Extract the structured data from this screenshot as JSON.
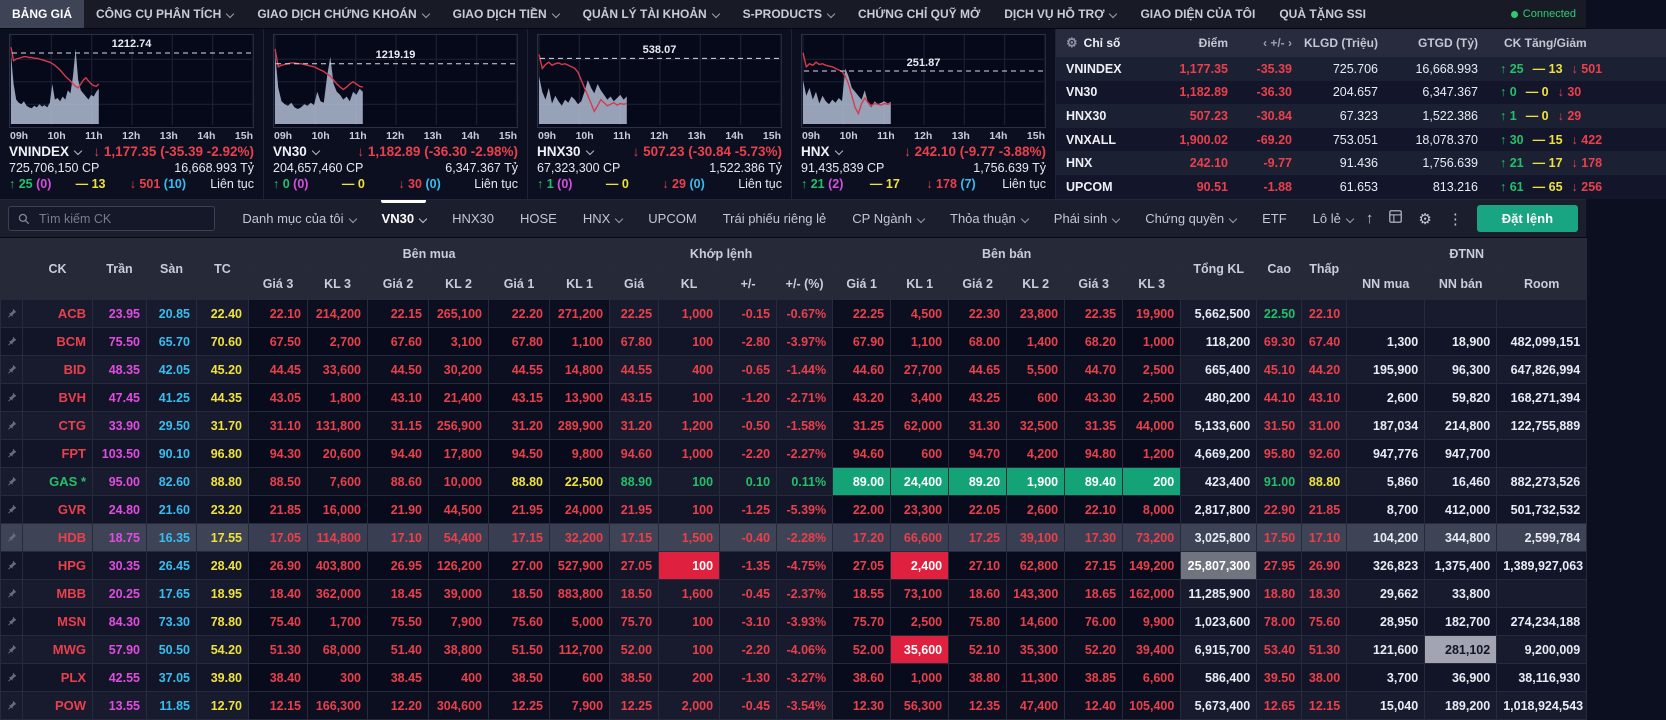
{
  "nav": {
    "items": [
      {
        "label": "BẢNG GIÁ",
        "active": true,
        "caret": false
      },
      {
        "label": "CÔNG CỤ PHÂN TÍCH",
        "caret": true
      },
      {
        "label": "GIAO DỊCH CHỨNG KHOÁN",
        "caret": true
      },
      {
        "label": "GIAO DỊCH TIỀN",
        "caret": true
      },
      {
        "label": "QUẢN LÝ TÀI KHOẢN",
        "caret": true
      },
      {
        "label": "S-PRODUCTS",
        "caret": true
      },
      {
        "label": "CHỨNG CHỈ QUỸ MỞ",
        "caret": false
      },
      {
        "label": "DỊCH VỤ HỖ TRỢ",
        "caret": true
      },
      {
        "label": "GIAO DIỆN CỦA TÔI",
        "caret": false
      },
      {
        "label": "QUÀ TẶNG SSI",
        "caret": false
      }
    ],
    "connection": "Connected"
  },
  "colors": {
    "up": "#23c06a",
    "down": "#e9404b",
    "reference": "#efe23e",
    "ceiling": "#df4ddf",
    "floor": "#38bdef",
    "accent": "#19a581"
  },
  "charts_meta": {
    "x_labels": [
      "09h",
      "10h",
      "11h",
      "12h",
      "13h",
      "14h",
      "15h"
    ]
  },
  "charts": [
    {
      "name": "VNINDEX",
      "ref": "1212.74",
      "ref_y": 0.2,
      "change": "1,177.35 (-35.39 -2.92%)",
      "volume": "725,706,150 CP",
      "value": "16,668.993 Tỷ",
      "up": "25",
      "up_ceil": "(0)",
      "flat": "13",
      "down": "501",
      "down_floor": "(10)",
      "session": "Liên tục",
      "area": [
        88,
        50,
        30,
        26,
        24,
        28,
        22,
        20,
        19,
        22,
        20,
        24,
        21,
        23,
        20,
        26,
        50,
        30,
        32,
        28,
        34,
        30,
        42,
        38,
        60,
        95,
        55,
        42,
        38,
        34,
        30,
        36,
        34,
        40,
        44
      ],
      "line": [
        97,
        80,
        82,
        83,
        84,
        85,
        85,
        84,
        84,
        83,
        83,
        82,
        81,
        80,
        79,
        78,
        76,
        74,
        71,
        68,
        64,
        60,
        57,
        54,
        50,
        47,
        45,
        50,
        55,
        58,
        54,
        50,
        48,
        47,
        50
      ]
    },
    {
      "name": "VN30",
      "ref": "1219.19",
      "ref_y": 0.32,
      "change": "1,182.89 (-36.30 -2.98%)",
      "volume": "204,657,460 CP",
      "value": "6,347.367 Tỷ",
      "up": "0",
      "up_ceil": "(0)",
      "flat": "0",
      "down": "30",
      "down_floor": "(0)",
      "session": "Liên tục",
      "area": [
        90,
        45,
        28,
        24,
        22,
        26,
        20,
        18,
        20,
        24,
        22,
        26,
        23,
        40,
        28,
        26,
        60,
        85,
        50,
        40,
        36,
        30,
        34,
        28,
        40,
        36,
        44,
        40
      ],
      "line": [
        95,
        72,
        74,
        75,
        76,
        77,
        77,
        76,
        76,
        75,
        74,
        73,
        72,
        70,
        68,
        66,
        63,
        60,
        55,
        50,
        46,
        43,
        46,
        50,
        53,
        50,
        47,
        46
      ]
    },
    {
      "name": "HNX30",
      "ref": "538.07",
      "ref_y": 0.26,
      "change": "507.23 (-30.84 -5.73%)",
      "volume": "67,323,300 CP",
      "value": "1,522.386 Tỷ",
      "up": "1",
      "up_ceil": "(0)",
      "flat": "0",
      "down": "29",
      "down_floor": "(0)",
      "session": "Liên tục",
      "area": [
        60,
        40,
        30,
        45,
        25,
        35,
        28,
        22,
        30,
        26,
        34,
        30,
        24,
        28,
        40,
        55,
        45,
        38,
        50,
        42,
        36,
        30,
        34,
        28,
        32,
        36,
        30,
        34
      ],
      "line": [
        88,
        70,
        75,
        78,
        74,
        76,
        77,
        75,
        76,
        74,
        72,
        70,
        65,
        55,
        45,
        35,
        25,
        15,
        22,
        30,
        26,
        22,
        24,
        26,
        23,
        25,
        24,
        25
      ]
    },
    {
      "name": "HNX",
      "ref": "251.87",
      "ref_y": 0.4,
      "change": "242.10 (-9.77 -3.88%)",
      "volume": "91,435,839 CP",
      "value": "1,756.639 Tỷ",
      "up": "21",
      "up_ceil": "(2)",
      "flat": "17",
      "down": "178",
      "down_floor": "(7)",
      "session": "Liên tục",
      "area": [
        55,
        35,
        45,
        30,
        40,
        25,
        35,
        28,
        24,
        30,
        26,
        32,
        28,
        70,
        60,
        45,
        40,
        35,
        30,
        42,
        25,
        20,
        28,
        24,
        26,
        28,
        25,
        27
      ],
      "line": [
        90,
        72,
        76,
        74,
        78,
        75,
        76,
        74,
        73,
        72,
        70,
        68,
        66,
        60,
        50,
        35,
        20,
        12,
        25,
        32,
        26,
        22,
        25,
        24,
        23,
        25,
        24,
        25
      ]
    }
  ],
  "index_table": {
    "headers": [
      "Chỉ số",
      "Điểm",
      "‹ +/- ›",
      "KLGD (Triệu)",
      "GTGD (Tỷ)",
      "CK Tăng/Giảm"
    ],
    "rows": [
      {
        "name": "VNINDEX",
        "point": "1,177.35",
        "change": "-35.39",
        "klgd": "725.706",
        "gtgd": "16,668.993",
        "up": "25",
        "flat": "13",
        "down": "501"
      },
      {
        "name": "VN30",
        "point": "1,182.89",
        "change": "-36.30",
        "klgd": "204.657",
        "gtgd": "6,347.367",
        "up": "0",
        "flat": "0",
        "down": "30"
      },
      {
        "name": "HNX30",
        "point": "507.23",
        "change": "-30.84",
        "klgd": "67.323",
        "gtgd": "1,522.386",
        "up": "1",
        "flat": "0",
        "down": "29"
      },
      {
        "name": "VNXALL",
        "point": "1,900.02",
        "change": "-69.20",
        "klgd": "753.051",
        "gtgd": "18,078.370",
        "up": "30",
        "flat": "15",
        "down": "422"
      },
      {
        "name": "HNX",
        "point": "242.10",
        "change": "-9.77",
        "klgd": "91.436",
        "gtgd": "1,756.639",
        "up": "21",
        "flat": "17",
        "down": "178"
      },
      {
        "name": "UPCOM",
        "point": "90.51",
        "change": "-1.88",
        "klgd": "61.653",
        "gtgd": "813.216",
        "up": "61",
        "flat": "65",
        "down": "256"
      }
    ]
  },
  "toolbar": {
    "search_placeholder": "Tìm kiếm CK",
    "tabs": [
      {
        "label": "Danh mục của tôi",
        "caret": true
      },
      {
        "label": "VN30",
        "caret": true,
        "active": true
      },
      {
        "label": "HNX30"
      },
      {
        "label": "HOSE"
      },
      {
        "label": "HNX",
        "caret": true
      },
      {
        "label": "UPCOM"
      },
      {
        "label": "Trái phiếu riêng lẻ"
      },
      {
        "label": "CP Ngành",
        "caret": true
      },
      {
        "label": "Thỏa thuận",
        "caret": true
      },
      {
        "label": "Phái sinh",
        "caret": true
      },
      {
        "label": "Chứng quyền",
        "caret": true
      },
      {
        "label": "ETF"
      },
      {
        "label": "Lô lẻ",
        "caret": true
      }
    ],
    "order_button": "Đặt lệnh"
  },
  "board": {
    "header": {
      "ck": "CK",
      "tran": "Trần",
      "san": "Sàn",
      "tc": "TC",
      "buy": "Bên mua",
      "match": "Khớp lệnh",
      "sell": "Bên bán",
      "total": "Tổng KL",
      "high": "Cao",
      "low": "Thấp",
      "dtnn": "ĐTNN",
      "buy_cols": [
        "Giá 3",
        "KL 3",
        "Giá 2",
        "KL 2",
        "Giá 1",
        "KL 1"
      ],
      "match_cols": [
        "Giá",
        "KL",
        "+/-",
        "+/- (%)"
      ],
      "sell_cols": [
        "Giá 1",
        "KL 1",
        "Giá 2",
        "KL 2",
        "Giá 3",
        "KL 3"
      ],
      "dtnn_cols": [
        "NN mua",
        "NN bán",
        "Room"
      ]
    },
    "rows": [
      {
        "t": "ACB",
        "tc": "rd",
        "v": [
          "23.95",
          "20.85",
          "22.40",
          "22.10",
          "214,200",
          "22.15",
          "265,100",
          "22.20",
          "271,200",
          "22.25",
          "1,000",
          "-0.15",
          "-0.67%",
          "22.25",
          "4,500",
          "22.30",
          "23,800",
          "22.35",
          "19,900",
          "5,662,500",
          "22.50",
          "22.10",
          "",
          "",
          ""
        ],
        "x": {
          "20": "gr"
        }
      },
      {
        "t": "BCM",
        "tc": "rd",
        "v": [
          "75.50",
          "65.70",
          "70.60",
          "67.50",
          "2,700",
          "67.60",
          "3,100",
          "67.80",
          "1,100",
          "67.80",
          "100",
          "-2.80",
          "-3.97%",
          "67.90",
          "1,100",
          "68.00",
          "1,400",
          "68.20",
          "1,000",
          "118,200",
          "69.30",
          "67.40",
          "1,300",
          "18,900",
          "482,099,151"
        ]
      },
      {
        "t": "BID",
        "tc": "rd",
        "v": [
          "48.35",
          "42.05",
          "45.20",
          "44.45",
          "33,600",
          "44.50",
          "30,200",
          "44.55",
          "14,800",
          "44.55",
          "400",
          "-0.65",
          "-1.44%",
          "44.60",
          "27,700",
          "44.65",
          "5,500",
          "44.70",
          "2,500",
          "665,400",
          "45.10",
          "44.20",
          "195,900",
          "96,300",
          "647,826,994"
        ]
      },
      {
        "t": "BVH",
        "tc": "rd",
        "v": [
          "47.45",
          "41.25",
          "44.35",
          "43.05",
          "1,800",
          "43.10",
          "21,400",
          "43.15",
          "13,900",
          "43.15",
          "100",
          "-1.20",
          "-2.71%",
          "43.20",
          "3,400",
          "43.25",
          "600",
          "43.30",
          "2,500",
          "480,200",
          "44.10",
          "43.10",
          "2,600",
          "59,820",
          "168,271,394"
        ]
      },
      {
        "t": "CTG",
        "tc": "rd",
        "v": [
          "33.90",
          "29.50",
          "31.70",
          "31.10",
          "131,800",
          "31.15",
          "256,900",
          "31.20",
          "289,900",
          "31.20",
          "1,200",
          "-0.50",
          "-1.58%",
          "31.25",
          "62,000",
          "31.30",
          "32,500",
          "31.35",
          "44,000",
          "5,133,600",
          "31.50",
          "31.00",
          "187,034",
          "214,800",
          "122,755,889"
        ]
      },
      {
        "t": "FPT",
        "tc": "rd",
        "v": [
          "103.50",
          "90.10",
          "96.80",
          "94.30",
          "20,600",
          "94.40",
          "17,800",
          "94.50",
          "9,800",
          "94.60",
          "1,000",
          "-2.20",
          "-2.27%",
          "94.60",
          "600",
          "94.70",
          "4,200",
          "94.80",
          "1,200",
          "4,669,200",
          "95.80",
          "92.60",
          "947,776",
          "947,700",
          ""
        ]
      },
      {
        "t": "GAS *",
        "tc": "gr",
        "v": [
          "95.00",
          "82.60",
          "88.80",
          "88.50",
          "7,600",
          "88.60",
          "10,000",
          "88.80",
          "22,500",
          "88.90",
          "100",
          "0.10",
          "0.11%",
          "89.00",
          "24,400",
          "89.20",
          "1,900",
          "89.40",
          "200",
          "423,400",
          "91.00",
          "88.80",
          "5,860",
          "16,460",
          "882,273,526"
        ],
        "x": {
          "7": "yl",
          "8": "yl",
          "9": "gr",
          "10": "gr",
          "11": "gr",
          "12": "gr",
          "13": "gbg",
          "14": "gbg",
          "15": "gbg",
          "16": "gbg",
          "17": "gbg",
          "18": "gbg",
          "20": "gr",
          "21": "yl"
        }
      },
      {
        "t": "GVR",
        "tc": "rd",
        "v": [
          "24.80",
          "21.60",
          "23.20",
          "21.85",
          "16,000",
          "21.90",
          "44,500",
          "21.95",
          "24,000",
          "21.95",
          "100",
          "-1.25",
          "-5.39%",
          "22.00",
          "23,300",
          "22.05",
          "2,600",
          "22.10",
          "8,000",
          "2,817,800",
          "22.90",
          "21.85",
          "8,700",
          "412,000",
          "501,732,532"
        ]
      },
      {
        "t": "HDB",
        "tc": "rd",
        "hl": true,
        "v": [
          "18.75",
          "16.35",
          "17.55",
          "17.05",
          "114,800",
          "17.10",
          "54,400",
          "17.15",
          "32,200",
          "17.15",
          "1,500",
          "-0.40",
          "-2.28%",
          "17.20",
          "66,600",
          "17.25",
          "39,100",
          "17.30",
          "73,200",
          "3,025,800",
          "17.50",
          "17.10",
          "104,200",
          "344,800",
          "2,599,784"
        ]
      },
      {
        "t": "HPG",
        "tc": "rd",
        "v": [
          "30.35",
          "26.45",
          "28.40",
          "26.90",
          "403,800",
          "26.95",
          "126,200",
          "27.00",
          "527,900",
          "27.05",
          "100",
          "-1.35",
          "-4.75%",
          "27.05",
          "2,400",
          "27.10",
          "62,800",
          "27.15",
          "149,200",
          "25,807,300",
          "27.95",
          "26.90",
          "326,823",
          "1,375,400",
          "1,389,927,063"
        ],
        "x": {
          "10": "bgR",
          "14": "bgR",
          "19": "bgG"
        }
      },
      {
        "t": "MBB",
        "tc": "rd",
        "v": [
          "20.25",
          "17.65",
          "18.95",
          "18.40",
          "362,000",
          "18.45",
          "39,000",
          "18.50",
          "883,800",
          "18.50",
          "1,600",
          "-0.45",
          "-2.37%",
          "18.55",
          "73,100",
          "18.60",
          "143,300",
          "18.65",
          "162,000",
          "11,285,900",
          "18.80",
          "18.30",
          "29,662",
          "33,800",
          ""
        ]
      },
      {
        "t": "MSN",
        "tc": "rd",
        "v": [
          "84.30",
          "73.30",
          "78.80",
          "75.40",
          "1,700",
          "75.50",
          "7,900",
          "75.60",
          "5,000",
          "75.70",
          "100",
          "-3.10",
          "-3.93%",
          "75.70",
          "2,500",
          "75.80",
          "14,600",
          "76.00",
          "9,900",
          "1,023,600",
          "78.00",
          "75.60",
          "28,950",
          "182,700",
          "274,234,188"
        ]
      },
      {
        "t": "MWG",
        "tc": "rd",
        "v": [
          "57.90",
          "50.50",
          "54.20",
          "51.30",
          "68,000",
          "51.40",
          "38,800",
          "51.50",
          "112,700",
          "52.00",
          "100",
          "-2.20",
          "-4.06%",
          "52.00",
          "35,600",
          "52.10",
          "35,300",
          "52.20",
          "39,400",
          "6,915,700",
          "53.40",
          "51.30",
          "121,600",
          "281,102",
          "9,200,009"
        ],
        "x": {
          "14": "bgR",
          "23": "bgL"
        }
      },
      {
        "t": "PLX",
        "tc": "rd",
        "v": [
          "42.55",
          "37.05",
          "39.80",
          "38.40",
          "300",
          "38.45",
          "400",
          "38.50",
          "600",
          "38.50",
          "200",
          "-1.30",
          "-3.27%",
          "38.60",
          "1,000",
          "38.80",
          "11,300",
          "38.85",
          "6,600",
          "586,400",
          "39.50",
          "38.00",
          "3,700",
          "36,900",
          "38,116,930"
        ]
      },
      {
        "t": "POW",
        "tc": "rd",
        "v": [
          "13.55",
          "11.85",
          "12.70",
          "12.15",
          "166,300",
          "12.20",
          "304,600",
          "12.25",
          "7,900",
          "12.25",
          "2,000",
          "-0.45",
          "-3.54%",
          "12.30",
          "56,300",
          "12.35",
          "47,400",
          "12.40",
          "105,400",
          "5,673,400",
          "12.65",
          "12.15",
          "15,040",
          "189,200",
          "1,018,924,543"
        ]
      }
    ]
  }
}
